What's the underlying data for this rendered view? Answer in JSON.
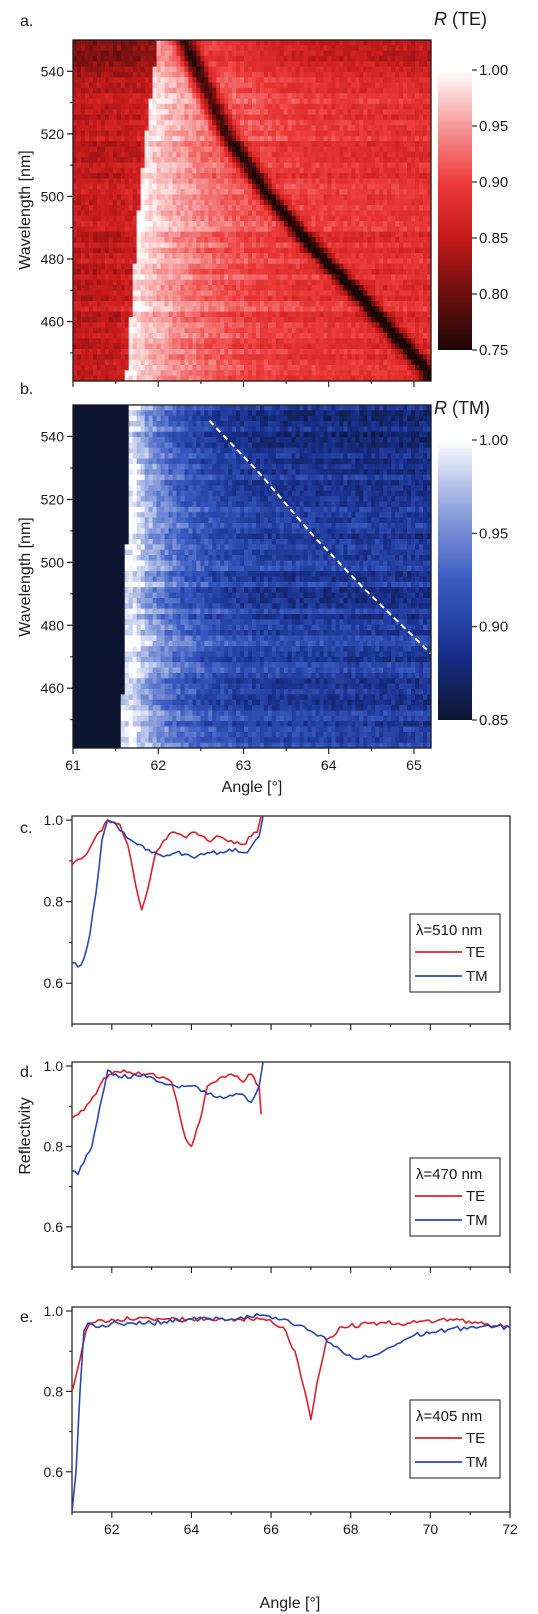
{
  "chart_data": [
    {
      "panel_label": "a.",
      "type": "heatmap",
      "xlim": [
        61,
        65.2
      ],
      "ylim": [
        441,
        550
      ],
      "ylabel": "Wavelength [nm]",
      "yticks": [
        460,
        480,
        500,
        520,
        540
      ],
      "colorbar": {
        "title_italic": "R",
        "title_rest": " (TE)",
        "range": [
          0.75,
          1.0
        ],
        "ticks": [
          "1.00",
          "0.95",
          "0.90",
          "0.85",
          "0.80",
          "0.75"
        ],
        "colors": [
          "#1c0606",
          "#6b0f0f",
          "#c41a1a",
          "#ee3b3b",
          "#f59a9a",
          "#ffffff"
        ]
      },
      "features": {
        "background_reflectivity": 0.86,
        "resonance_reflectivity": 0.76,
        "resonance_curve": {
          "angle": [
            62.3,
            62.8,
            63.3,
            63.8,
            64.3,
            64.8,
            65.2
          ],
          "wavelength": [
            550,
            520,
            500,
            484,
            470,
            455,
            443
          ]
        },
        "cutoff_curve": {
          "angle": [
            62.0,
            61.9,
            61.78,
            61.7,
            61.62
          ],
          "wavelength": [
            550,
            530,
            500,
            470,
            441
          ]
        }
      }
    },
    {
      "panel_label": "b.",
      "type": "heatmap",
      "xlim": [
        61,
        65.2
      ],
      "ylim": [
        441,
        550
      ],
      "ylabel": "Wavelength [nm]",
      "xlabel": "Angle [°]",
      "xticks": [
        61,
        62,
        63,
        64,
        65
      ],
      "yticks": [
        460,
        480,
        500,
        520,
        540
      ],
      "colorbar": {
        "title_italic": "R",
        "title_rest": " (TM)",
        "range": [
          0.85,
          1.0
        ],
        "ticks": [
          "1.00",
          "0.95",
          "0.90",
          "0.85"
        ],
        "colors": [
          "#0c1530",
          "#18308e",
          "#3b5bc2",
          "#8ea2dc",
          "#ffffff"
        ]
      },
      "features": {
        "cutoff_angle": 61.7,
        "below_cutoff_reflectivity": 0.8,
        "dashed_curve": {
          "angle": [
            62.6,
            63.2,
            63.8,
            64.4,
            65.2
          ],
          "wavelength": [
            545,
            528,
            509,
            492,
            471
          ]
        }
      }
    },
    {
      "panel_label": "c.",
      "type": "line",
      "xlim": [
        61,
        72
      ],
      "ylim": [
        0.5,
        1.01
      ],
      "yticks": [
        "0.6",
        "0.8",
        "1.0"
      ],
      "legend": {
        "title": "λ=510 nm",
        "placement": "lower-right"
      },
      "series": [
        {
          "name": "TE",
          "color": "#d9202a",
          "x": [
            61.0,
            61.3,
            61.6,
            61.9,
            62.2,
            62.4,
            62.6,
            62.75,
            62.9,
            63.1,
            63.3,
            63.5,
            63.8,
            64.1,
            64.4,
            64.7,
            65.0,
            65.3,
            65.5,
            65.65,
            65.75
          ],
          "y": [
            0.89,
            0.91,
            0.96,
            1.0,
            0.99,
            0.94,
            0.84,
            0.78,
            0.83,
            0.92,
            0.95,
            0.97,
            0.96,
            0.97,
            0.95,
            0.96,
            0.95,
            0.94,
            0.96,
            0.97,
            1.01
          ]
        },
        {
          "name": "TM",
          "color": "#2a46b3",
          "x": [
            61.0,
            61.15,
            61.3,
            61.45,
            61.6,
            61.75,
            61.9,
            62.1,
            62.3,
            62.5,
            62.7,
            63.0,
            63.3,
            63.6,
            64.0,
            64.4,
            64.8,
            65.1,
            65.4,
            65.6,
            65.7,
            65.8
          ],
          "y": [
            0.65,
            0.64,
            0.66,
            0.72,
            0.82,
            0.95,
            1.0,
            0.99,
            0.97,
            0.95,
            0.94,
            0.92,
            0.91,
            0.92,
            0.91,
            0.92,
            0.92,
            0.93,
            0.92,
            0.95,
            0.96,
            1.01
          ]
        }
      ]
    },
    {
      "panel_label": "d.",
      "type": "line",
      "xlim": [
        61,
        72
      ],
      "ylim": [
        0.5,
        1.01
      ],
      "yticks": [
        "0.6",
        "0.8",
        "1.0"
      ],
      "ylabel": "Reflectivity",
      "legend": {
        "title": "λ=470 nm",
        "placement": "lower-right"
      },
      "series": [
        {
          "name": "TE",
          "color": "#d9202a",
          "x": [
            61.0,
            61.3,
            61.6,
            61.8,
            62.0,
            62.3,
            62.6,
            62.9,
            63.2,
            63.5,
            63.7,
            63.85,
            64.0,
            64.2,
            64.4,
            64.7,
            65.0,
            65.3,
            65.5,
            65.7,
            65.75
          ],
          "y": [
            0.87,
            0.89,
            0.93,
            0.97,
            0.98,
            0.99,
            0.98,
            0.98,
            0.97,
            0.96,
            0.88,
            0.82,
            0.8,
            0.86,
            0.95,
            0.97,
            0.98,
            0.96,
            0.98,
            0.95,
            0.88
          ]
        },
        {
          "name": "TM",
          "color": "#2a46b3",
          "x": [
            61.0,
            61.15,
            61.3,
            61.5,
            61.7,
            61.9,
            62.1,
            62.4,
            62.8,
            63.2,
            63.6,
            64.0,
            64.4,
            64.8,
            65.2,
            65.5,
            65.7,
            65.8
          ],
          "y": [
            0.74,
            0.73,
            0.76,
            0.8,
            0.9,
            0.99,
            0.98,
            0.97,
            0.98,
            0.96,
            0.95,
            0.95,
            0.93,
            0.92,
            0.93,
            0.91,
            0.95,
            1.01
          ]
        }
      ]
    },
    {
      "panel_label": "e.",
      "type": "line",
      "xlim": [
        61,
        72
      ],
      "ylim": [
        0.5,
        1.01
      ],
      "xticks": [
        62,
        64,
        66,
        68,
        70,
        72
      ],
      "yticks": [
        "0.6",
        "0.8",
        "1.0"
      ],
      "xlabel": "Angle [°]",
      "legend": {
        "title": "λ=405 nm",
        "placement": "lower-right"
      },
      "series": [
        {
          "name": "TE",
          "color": "#d9202a",
          "x": [
            61.0,
            61.2,
            61.35,
            61.5,
            62.0,
            63.0,
            64.0,
            65.0,
            65.8,
            66.3,
            66.6,
            66.85,
            67.0,
            67.15,
            67.4,
            67.8,
            68.5,
            69.5,
            70.5,
            71.2,
            72.0
          ],
          "y": [
            0.8,
            0.88,
            0.95,
            0.97,
            0.98,
            0.98,
            0.98,
            0.98,
            0.98,
            0.96,
            0.9,
            0.8,
            0.73,
            0.82,
            0.93,
            0.96,
            0.97,
            0.97,
            0.98,
            0.97,
            0.96
          ]
        },
        {
          "name": "TM",
          "color": "#2a46b3",
          "x": [
            61.0,
            61.1,
            61.2,
            61.3,
            61.4,
            61.6,
            62.0,
            63.0,
            64.0,
            65.0,
            65.8,
            66.5,
            67.0,
            67.5,
            67.9,
            68.2,
            68.6,
            69.0,
            69.6,
            70.2,
            71.0,
            72.0
          ],
          "y": [
            0.5,
            0.6,
            0.8,
            0.95,
            0.97,
            0.96,
            0.97,
            0.97,
            0.98,
            0.98,
            0.99,
            0.97,
            0.95,
            0.92,
            0.89,
            0.88,
            0.89,
            0.91,
            0.94,
            0.95,
            0.96,
            0.96
          ]
        }
      ]
    }
  ]
}
